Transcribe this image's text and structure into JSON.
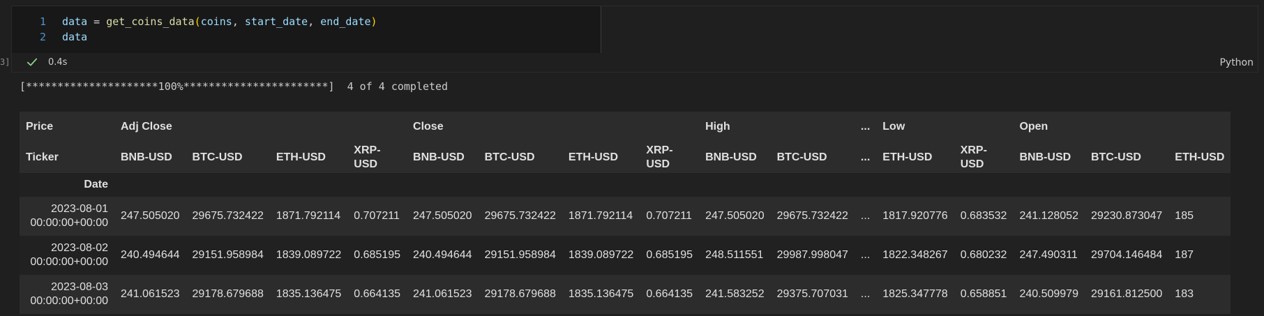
{
  "cell": {
    "exec_count": "3]",
    "code_lines": [
      {
        "num": "1",
        "parts": [
          {
            "t": "data",
            "c": "tok-var"
          },
          {
            "t": " = ",
            "c": "tok-op"
          },
          {
            "t": "get_coins_data",
            "c": "tok-fn"
          },
          {
            "t": "(",
            "c": "tok-paren"
          },
          {
            "t": "coins",
            "c": "tok-var"
          },
          {
            "t": ", ",
            "c": "tok-op"
          },
          {
            "t": "start_date",
            "c": "tok-var"
          },
          {
            "t": ", ",
            "c": "tok-op"
          },
          {
            "t": "end_date",
            "c": "tok-var"
          },
          {
            "t": ")",
            "c": "tok-paren"
          }
        ]
      },
      {
        "num": "2",
        "parts": [
          {
            "t": "data",
            "c": "tok-var"
          }
        ]
      }
    ],
    "elapsed": "0.4s",
    "language": "Python",
    "check_color": "#89d185"
  },
  "output": {
    "progress_text": "[*********************100%***********************]  4 of 4 completed"
  },
  "table": {
    "price_label": "Price",
    "ticker_label": "Ticker",
    "date_label": "Date",
    "groups": [
      {
        "label": "Adj Close",
        "span": 4
      },
      {
        "label": "Close",
        "span": 4
      },
      {
        "label": "High",
        "span": 2
      },
      {
        "label": "...",
        "span": 1,
        "ellipsis": true
      },
      {
        "label": "Low",
        "span": 2
      },
      {
        "label": "Open",
        "span": 3
      }
    ],
    "tickers": [
      "BNB-USD",
      "BTC-USD",
      "ETH-USD",
      "XRP-USD",
      "BNB-USD",
      "BTC-USD",
      "ETH-USD",
      "XRP-USD",
      "BNB-USD",
      "BTC-USD",
      "...",
      "ETH-USD",
      "XRP-USD",
      "BNB-USD",
      "BTC-USD",
      "ETH-USD"
    ],
    "rows": [
      {
        "date": "2023-08-01 00:00:00+00:00",
        "cells": [
          "247.505020",
          "29675.732422",
          "1871.792114",
          "0.707211",
          "247.505020",
          "29675.732422",
          "1871.792114",
          "0.707211",
          "247.505020",
          "29675.732422",
          "...",
          "1817.920776",
          "0.683532",
          "241.128052",
          "29230.873047",
          "185"
        ]
      },
      {
        "date": "2023-08-02 00:00:00+00:00",
        "cells": [
          "240.494644",
          "29151.958984",
          "1839.089722",
          "0.685195",
          "240.494644",
          "29151.958984",
          "1839.089722",
          "0.685195",
          "248.511551",
          "29987.998047",
          "...",
          "1822.348267",
          "0.680232",
          "247.490311",
          "29704.146484",
          "187"
        ]
      },
      {
        "date": "2023-08-03 00:00:00+00:00",
        "cells": [
          "241.061523",
          "29178.679688",
          "1835.136475",
          "0.664135",
          "241.061523",
          "29178.679688",
          "1835.136475",
          "0.664135",
          "241.583252",
          "29375.707031",
          "...",
          "1825.347778",
          "0.658851",
          "240.509979",
          "29161.812500",
          "183"
        ]
      }
    ]
  }
}
